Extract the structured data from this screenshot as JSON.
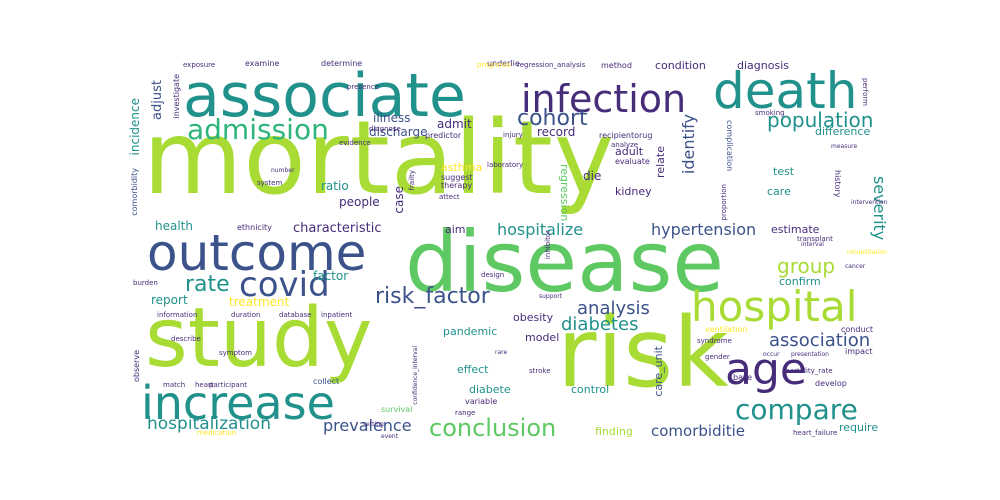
{
  "palette": {
    "lime": "#a8db34",
    "green": "#5ec962",
    "teal": "#21918c",
    "blue": "#3b528b",
    "purple": "#472c7a",
    "yellow": "#fde725",
    "aqua": "#2fb47c"
  },
  "words": [
    {
      "text": "mortality",
      "color": "lime"
    },
    {
      "text": "disease",
      "color": "green"
    },
    {
      "text": "risk",
      "color": "lime"
    },
    {
      "text": "study",
      "color": "lime"
    },
    {
      "text": "associate",
      "color": "teal"
    },
    {
      "text": "outcome",
      "color": "blue"
    },
    {
      "text": "death",
      "color": "teal"
    },
    {
      "text": "infection",
      "color": "purple"
    },
    {
      "text": "increase",
      "color": "teal"
    },
    {
      "text": "hospital",
      "color": "lime"
    },
    {
      "text": "age",
      "color": "purple"
    },
    {
      "text": "covid",
      "color": "blue"
    },
    {
      "text": "admission",
      "color": "aqua"
    },
    {
      "text": "compare",
      "color": "teal"
    },
    {
      "text": "conclusion",
      "color": "green"
    },
    {
      "text": "risk_factor",
      "color": "blue"
    },
    {
      "text": "population",
      "color": "teal"
    },
    {
      "text": "group",
      "color": "lime"
    },
    {
      "text": "rate",
      "color": "teal"
    },
    {
      "text": "cohort",
      "color": "blue"
    },
    {
      "text": "analysis",
      "color": "blue"
    },
    {
      "text": "diabetes",
      "color": "teal"
    },
    {
      "text": "association",
      "color": "blue"
    },
    {
      "text": "hospitalization",
      "color": "teal"
    },
    {
      "text": "prevalence",
      "color": "blue"
    },
    {
      "text": "comorbiditie",
      "color": "blue"
    },
    {
      "text": "severity",
      "color": "teal"
    },
    {
      "text": "hypertension",
      "color": "blue"
    },
    {
      "text": "hospitalize",
      "color": "teal"
    },
    {
      "text": "identify",
      "color": "blue"
    },
    {
      "text": "characteristic",
      "color": "purple"
    },
    {
      "text": "condition",
      "color": "purple"
    },
    {
      "text": "diagnosis",
      "color": "purple"
    },
    {
      "text": "record",
      "color": "purple"
    },
    {
      "text": "admit",
      "color": "purple"
    },
    {
      "text": "adjust",
      "color": "blue"
    },
    {
      "text": "incidence",
      "color": "teal"
    },
    {
      "text": "illness",
      "color": "blue"
    },
    {
      "text": "discharge",
      "color": "blue"
    },
    {
      "text": "ratio",
      "color": "teal"
    },
    {
      "text": "people",
      "color": "purple"
    },
    {
      "text": "case",
      "color": "purple"
    },
    {
      "text": "die",
      "color": "purple"
    },
    {
      "text": "kidney",
      "color": "purple"
    },
    {
      "text": "adult",
      "color": "purple"
    },
    {
      "text": "relate",
      "color": "purple"
    },
    {
      "text": "regression",
      "color": "green"
    },
    {
      "text": "treatment",
      "color": "yellow"
    },
    {
      "text": "report",
      "color": "teal"
    },
    {
      "text": "factor",
      "color": "teal"
    },
    {
      "text": "health",
      "color": "teal"
    },
    {
      "text": "obesity",
      "color": "purple"
    },
    {
      "text": "pandemic",
      "color": "teal"
    },
    {
      "text": "model",
      "color": "purple"
    },
    {
      "text": "effect",
      "color": "teal"
    },
    {
      "text": "diabete",
      "color": "teal"
    },
    {
      "text": "control",
      "color": "teal"
    },
    {
      "text": "care_unit",
      "color": "blue"
    },
    {
      "text": "confirm",
      "color": "teal"
    },
    {
      "text": "estimate",
      "color": "purple"
    },
    {
      "text": "difference",
      "color": "teal"
    },
    {
      "text": "test",
      "color": "teal"
    },
    {
      "text": "care",
      "color": "teal"
    },
    {
      "text": "require",
      "color": "teal"
    },
    {
      "text": "finding",
      "color": "lime"
    },
    {
      "text": "aim",
      "color": "purple"
    },
    {
      "text": "asthma",
      "color": "yellow"
    },
    {
      "text": "suggest",
      "color": "purple"
    },
    {
      "text": "therapy",
      "color": "purple"
    },
    {
      "text": "impact",
      "color": "purple"
    },
    {
      "text": "develop",
      "color": "purple"
    },
    {
      "text": "variable",
      "color": "purple"
    },
    {
      "text": "survival",
      "color": "green"
    },
    {
      "text": "ventilation",
      "color": "yellow"
    },
    {
      "text": "complication",
      "color": "blue"
    },
    {
      "text": "determine",
      "color": "purple"
    },
    {
      "text": "examine",
      "color": "purple"
    },
    {
      "text": "underlie",
      "color": "purple"
    },
    {
      "text": "method",
      "color": "purple"
    },
    {
      "text": "ethnicity",
      "color": "purple"
    },
    {
      "text": "collect",
      "color": "blue"
    },
    {
      "text": "base",
      "color": "purple"
    },
    {
      "text": "conduct",
      "color": "purple"
    },
    {
      "text": "history",
      "color": "purple"
    },
    {
      "text": "investigate",
      "color": "purple"
    },
    {
      "text": "comorbidity",
      "color": "blue"
    },
    {
      "text": "observe",
      "color": "purple"
    },
    {
      "text": "predictor",
      "color": "purple"
    },
    {
      "text": "recipientorug",
      "color": "purple"
    },
    {
      "text": "evaluate",
      "color": "purple"
    },
    {
      "text": "range",
      "color": "purple"
    },
    {
      "text": "stroke",
      "color": "purple"
    },
    {
      "text": "mortality_rate",
      "color": "purple"
    },
    {
      "text": "heart_failure",
      "color": "purple"
    },
    {
      "text": "gender",
      "color": "purple"
    },
    {
      "text": "syndrome",
      "color": "purple"
    },
    {
      "text": "prognosis",
      "color": "yellow"
    },
    {
      "text": "exposure",
      "color": "purple"
    },
    {
      "text": "regression_analysis",
      "color": "purple"
    },
    {
      "text": "presence",
      "color": "purple"
    },
    {
      "text": "diagnose",
      "color": "purple"
    },
    {
      "text": "smoking",
      "color": "purple"
    },
    {
      "text": "injury",
      "color": "purple"
    },
    {
      "text": "laboratory",
      "color": "purple"
    },
    {
      "text": "analyze",
      "color": "purple"
    },
    {
      "text": "proportion",
      "color": "purple"
    },
    {
      "text": "evidence",
      "color": "purple"
    },
    {
      "text": "frailty",
      "color": "purple"
    },
    {
      "text": "attect",
      "color": "purple"
    },
    {
      "text": "system",
      "color": "purple"
    },
    {
      "text": "duration",
      "color": "purple"
    },
    {
      "text": "information",
      "color": "purple"
    },
    {
      "text": "inpatient",
      "color": "purple"
    },
    {
      "text": "database",
      "color": "purple"
    },
    {
      "text": "symptom",
      "color": "purple"
    },
    {
      "text": "describe",
      "color": "purple"
    },
    {
      "text": "participant",
      "color": "purple"
    },
    {
      "text": "match",
      "color": "purple"
    },
    {
      "text": "heart",
      "color": "purple"
    },
    {
      "text": "medication",
      "color": "yellow"
    },
    {
      "text": "burden",
      "color": "purple"
    },
    {
      "text": "design",
      "color": "purple"
    },
    {
      "text": "inhibitor",
      "color": "purple"
    },
    {
      "text": "transplant",
      "color": "purple"
    },
    {
      "text": "interval",
      "color": "purple"
    },
    {
      "text": "cancer",
      "color": "purple"
    },
    {
      "text": "measure",
      "color": "purple"
    },
    {
      "text": "perform",
      "color": "purple"
    },
    {
      "text": "presentation",
      "color": "purple"
    },
    {
      "text": "occur",
      "color": "purple"
    },
    {
      "text": "rare",
      "color": "purple"
    },
    {
      "text": "confidence_interval",
      "color": "purple"
    },
    {
      "text": "event",
      "color": "purple"
    },
    {
      "text": "setting",
      "color": "purple"
    },
    {
      "text": "support",
      "color": "purple"
    },
    {
      "text": "number",
      "color": "purple"
    },
    {
      "text": "rehabilitation",
      "color": "yellow"
    },
    {
      "text": "intervention",
      "color": "purple"
    }
  ]
}
